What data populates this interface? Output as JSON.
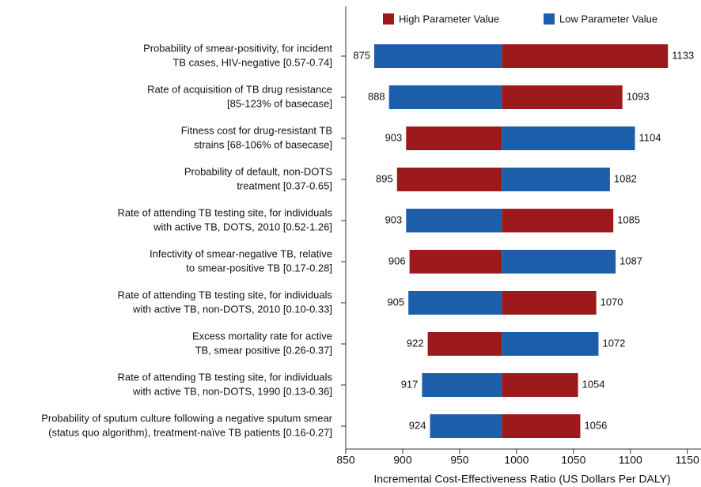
{
  "chart_data": {
    "type": "tornado",
    "xlabel": "Incremental Cost-Effectiveness Ratio (US Dollars Per DALY)",
    "base": 987,
    "categories": [
      [
        "Probability of smear-positivity, for incident",
        "TB cases, HIV-negative [0.57-0.74]"
      ],
      [
        "Rate of acquisition of TB drug resistance",
        "[85-123% of basecase]"
      ],
      [
        "Fitness cost for drug-resistant TB",
        "strains [68-106% of basecase]"
      ],
      [
        "Probability of default, non-DOTS",
        "treatment [0.37-0.65]"
      ],
      [
        "Rate of attending TB testing site, for individuals",
        "with active TB, DOTS, 2010 [0.52-1.26]"
      ],
      [
        "Infectivity of smear-negative TB, relative",
        "to smear-positive TB [0.17-0.28]"
      ],
      [
        "Rate of attending TB testing site, for individuals",
        "with active TB, non-DOTS, 2010 [0.10-0.33]"
      ],
      [
        "Excess mortality rate for active",
        "TB, smear positive [0.26-0.37]"
      ],
      [
        "Rate of attending TB testing site, for individuals",
        "with active TB, non-DOTS, 1990 [0.13-0.36]"
      ],
      [
        "Probability of sputum culture following a negative sputum smear",
        "(status quo algorithm), treatment-naïve TB patients [0.16-0.27]"
      ]
    ],
    "series": [
      {
        "name": "High Parameter Value",
        "color": "#9c1a1c",
        "values": [
          1133,
          1093,
          903,
          895,
          1085,
          906,
          1070,
          922,
          1054,
          1056
        ]
      },
      {
        "name": "Low Parameter Value",
        "color": "#1d5eab",
        "values": [
          875,
          888,
          1104,
          1082,
          903,
          1087,
          905,
          1072,
          917,
          924
        ]
      }
    ],
    "xlim": [
      850,
      1162
    ],
    "xticks": [
      850,
      900,
      950,
      1000,
      1050,
      1100,
      1150
    ]
  }
}
